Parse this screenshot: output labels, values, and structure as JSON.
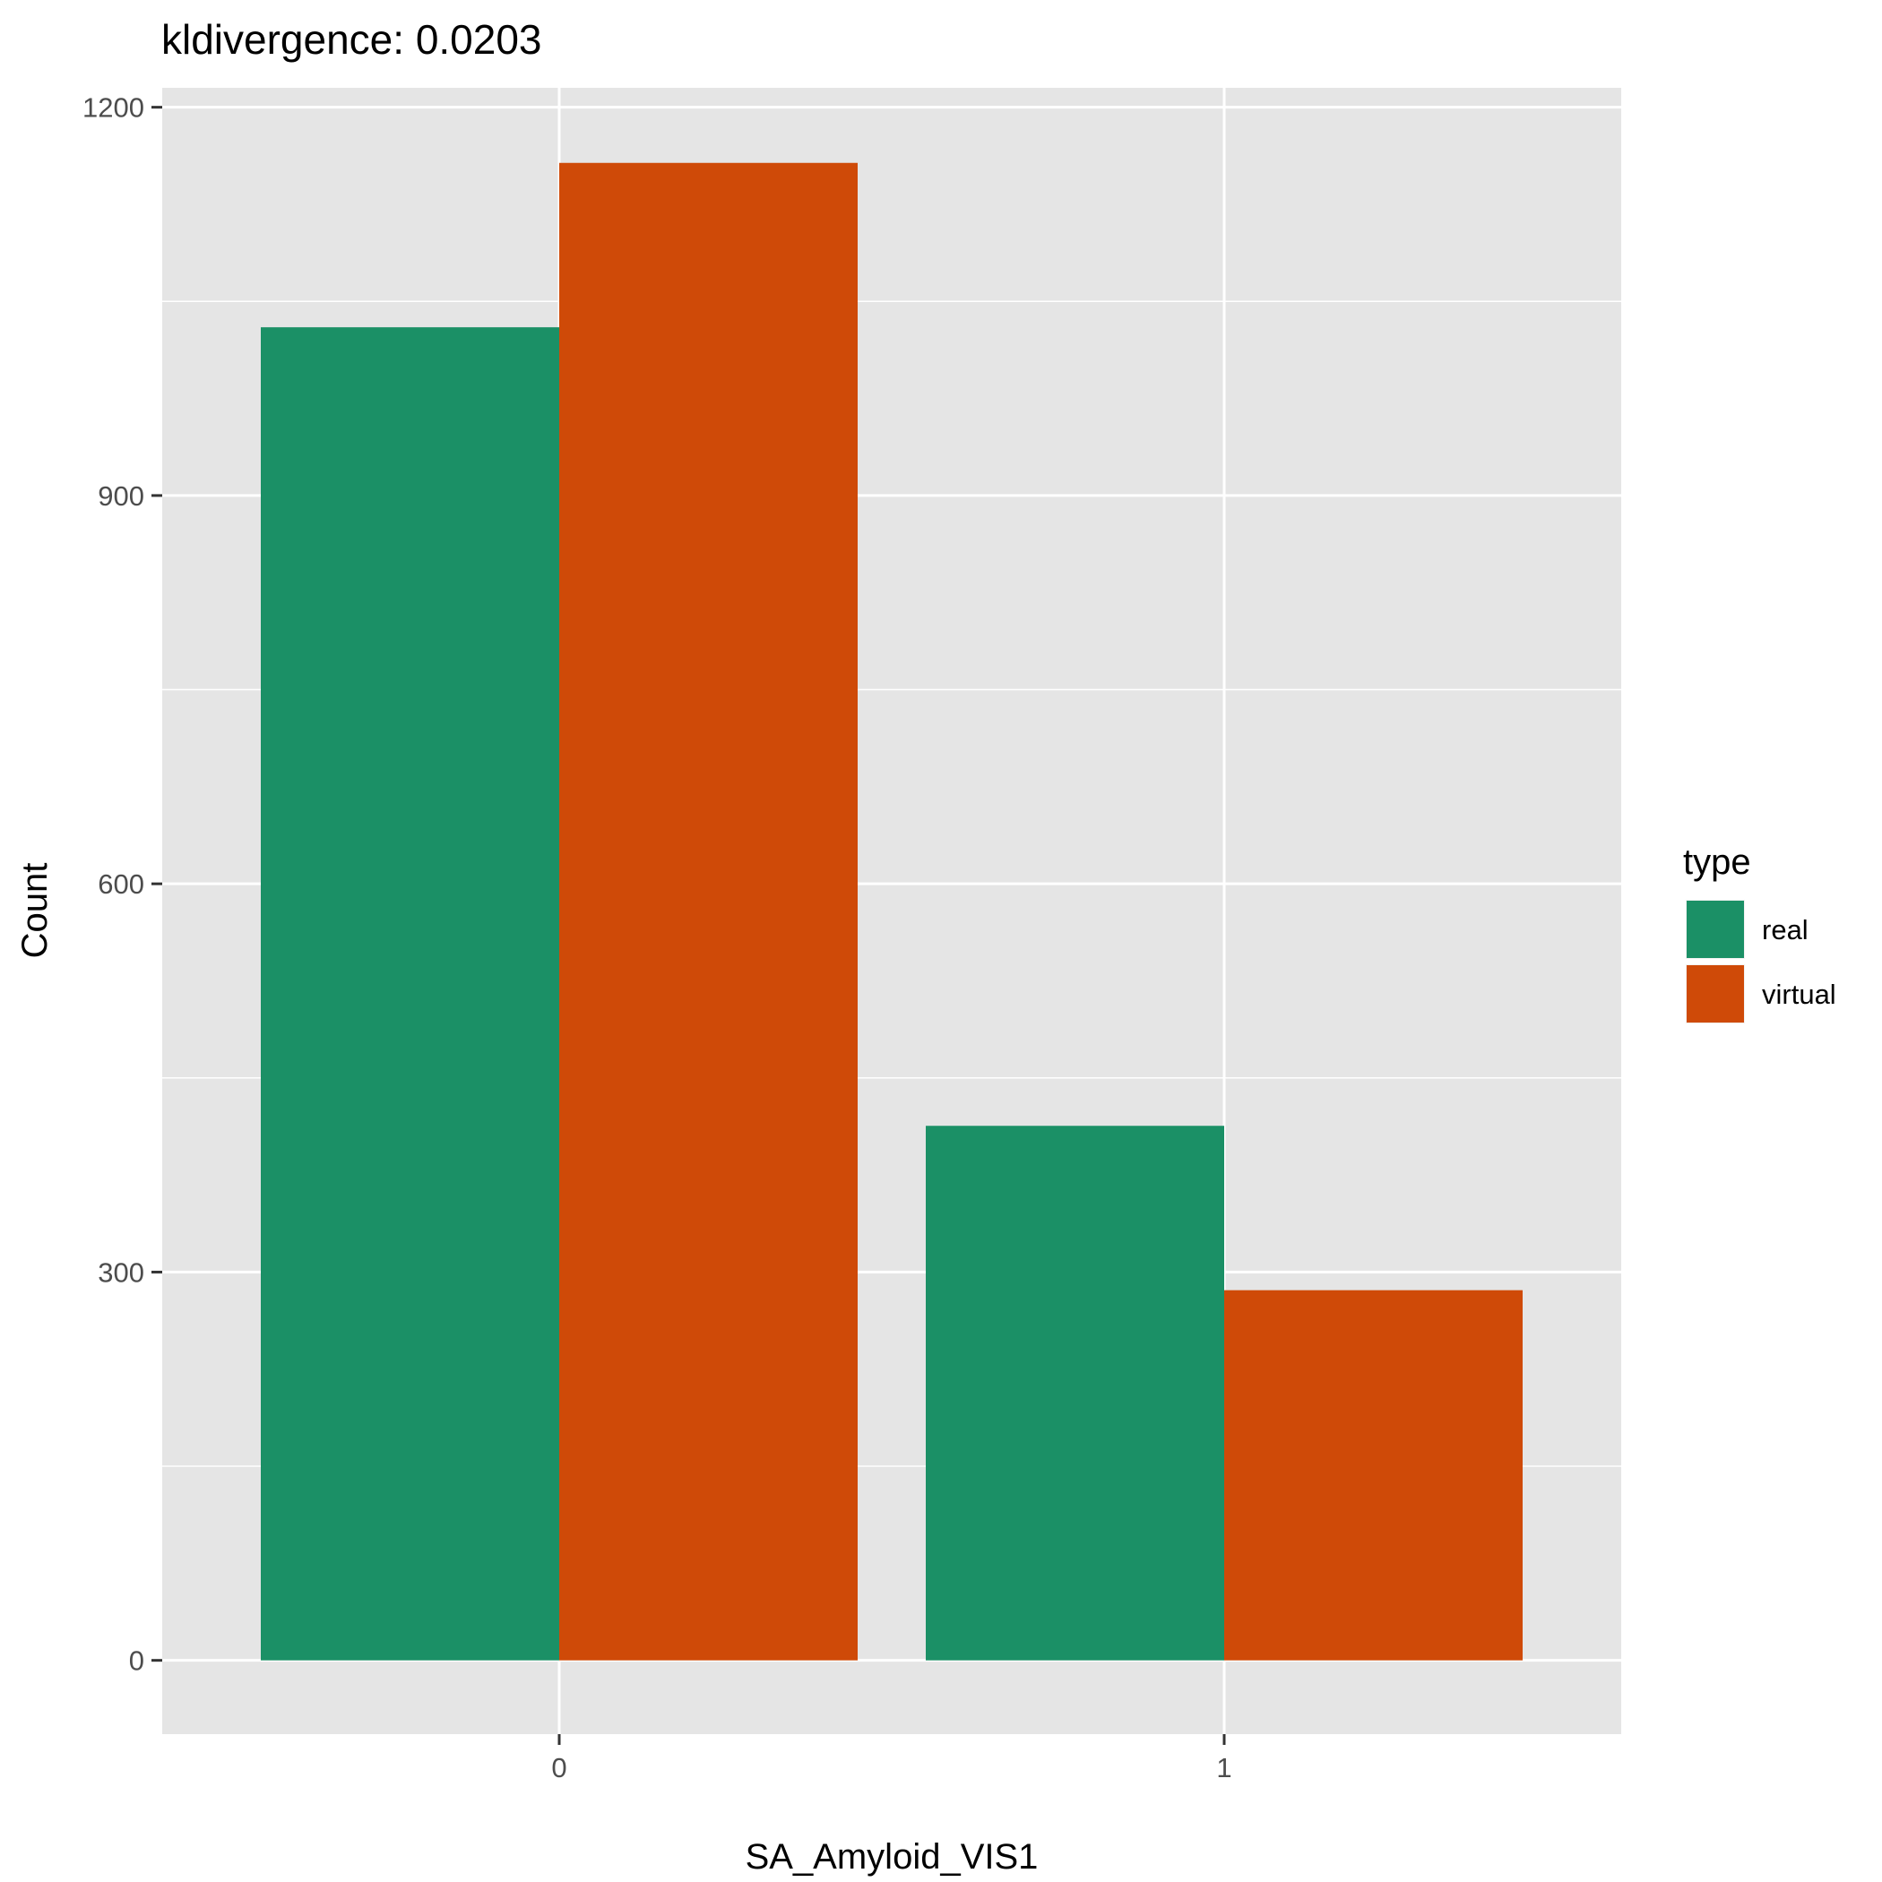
{
  "chart_data": {
    "type": "bar",
    "title": "kldivergence: 0.0203",
    "xlabel": "SA_Amyloid_VIS1",
    "ylabel": "Count",
    "categories": [
      "0",
      "1"
    ],
    "series": [
      {
        "name": "real",
        "color": "#1b9066",
        "values": [
          1030,
          413
        ]
      },
      {
        "name": "virtual",
        "color": "#cf4a08",
        "values": [
          1157,
          286
        ]
      }
    ],
    "ylim": [
      -57,
      1215
    ],
    "yticks": [
      0,
      300,
      600,
      900,
      1200
    ],
    "grid": true,
    "panel_background": "#e5e5e5",
    "legend": {
      "title": "type",
      "position": "right"
    }
  }
}
